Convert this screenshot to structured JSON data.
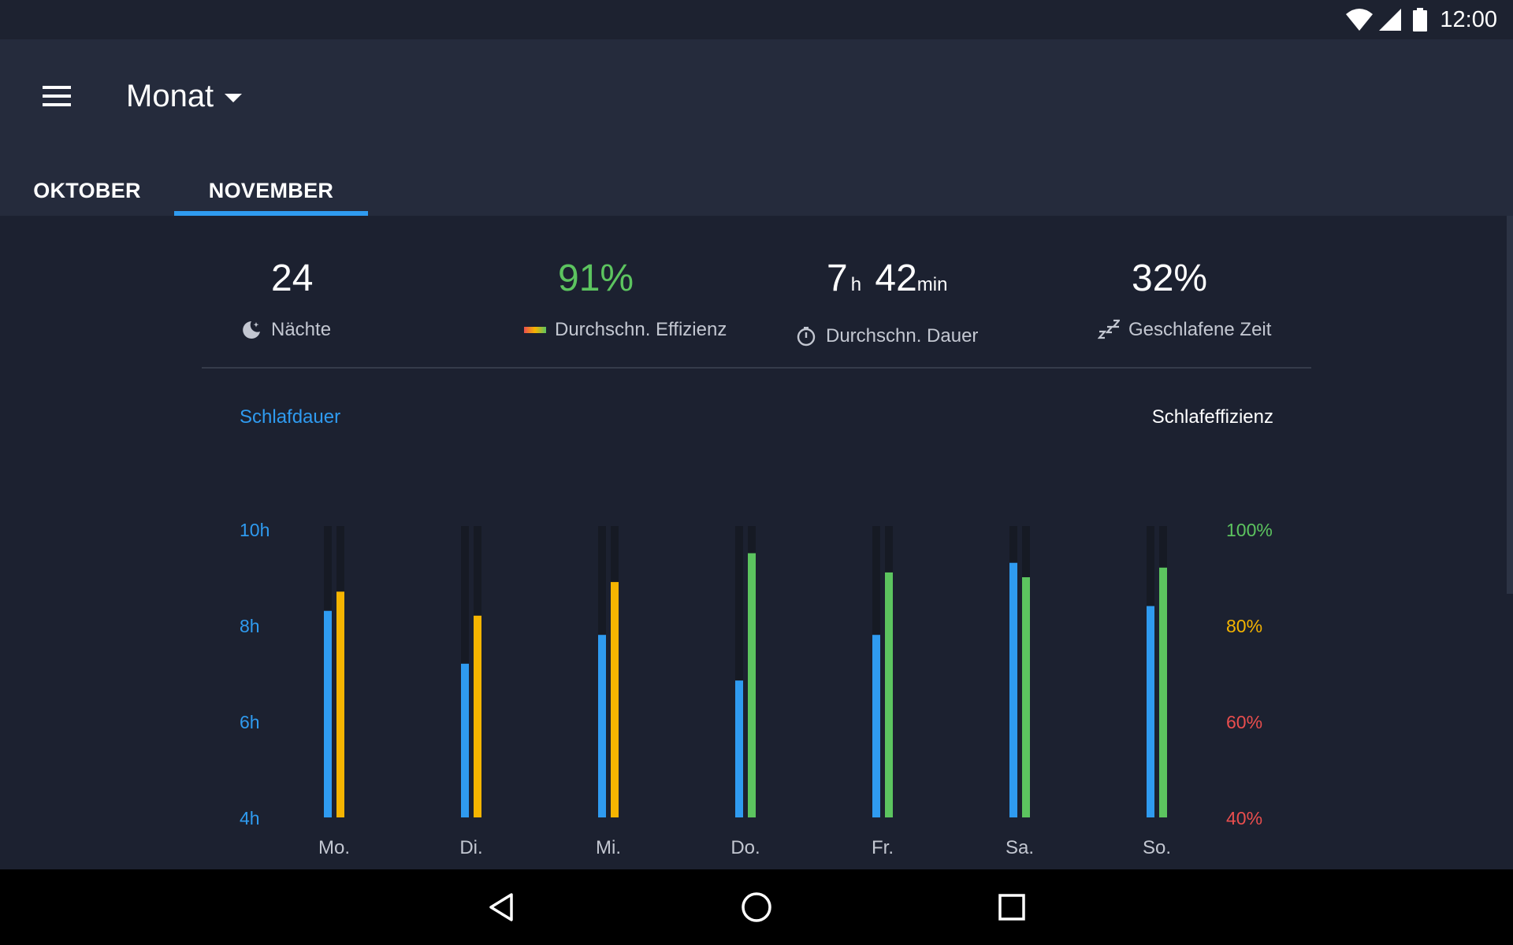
{
  "status_bar": {
    "time": "12:00"
  },
  "app_bar": {
    "title": "Monat"
  },
  "tabs": [
    {
      "label": "OKTOBER",
      "selected": false
    },
    {
      "label": "NOVEMBER",
      "selected": true
    }
  ],
  "stats": {
    "nights": {
      "value": "24",
      "label": "Nächte"
    },
    "efficiency": {
      "value": "91%",
      "label": "Durchschn. Effizienz",
      "color": "#5cc45f"
    },
    "duration": {
      "hours": "7",
      "hours_unit": "h",
      "minutes": "42",
      "minutes_unit": "min",
      "label": "Durchschn. Dauer"
    },
    "slept": {
      "value": "32%",
      "label": "Geschlafene Zeit"
    }
  },
  "chart_data": {
    "type": "bar",
    "categories": [
      "Mo.",
      "Di.",
      "Mi.",
      "Do.",
      "Fr.",
      "Sa.",
      "So."
    ],
    "legend_left": "Schlafdauer",
    "legend_right": "Schlafeffizienz",
    "y_left": {
      "ticks": [
        "10h",
        "8h",
        "6h",
        "4h"
      ],
      "range": [
        4,
        10
      ],
      "color": "#2f9bf0"
    },
    "y_right": {
      "ticks": [
        {
          "label": "100%",
          "color": "#5cc45f"
        },
        {
          "label": "80%",
          "color": "#f5b400"
        },
        {
          "label": "60%",
          "color": "#ea4e4e"
        },
        {
          "label": "40%",
          "color": "#ea4e4e"
        }
      ],
      "range": [
        40,
        100
      ]
    },
    "series": [
      {
        "name": "Schlafdauer",
        "values": [
          8.3,
          7.2,
          7.8,
          6.85,
          7.8,
          9.3,
          8.4
        ],
        "color": "#2f9bf0"
      },
      {
        "name": "Schlafeffizienz",
        "values": [
          87,
          82,
          89,
          95,
          91,
          90,
          92
        ],
        "colors": [
          "#f5b400",
          "#f5b400",
          "#f5b400",
          "#5cc45f",
          "#5cc45f",
          "#5cc45f",
          "#5cc45f"
        ]
      }
    ],
    "colors": {
      "track": "#161a24",
      "tick_label": "#c3c7d1"
    }
  },
  "icons": {
    "menu": "menu-icon",
    "dropdown": "arrow-drop-down-icon",
    "moon": "moon-icon",
    "efficiency": "efficiency-gradient-icon",
    "timer": "timer-icon",
    "sleep": "zzz-icon",
    "back": "back-icon",
    "home": "home-icon",
    "recents": "recents-icon",
    "wifi": "wifi-icon",
    "signal": "signal-icon",
    "battery": "battery-icon"
  }
}
